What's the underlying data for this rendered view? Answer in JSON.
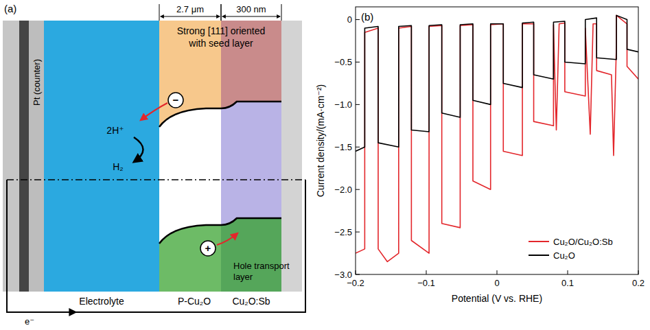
{
  "diagram": {
    "panel_label": "(a)",
    "dimensions": [
      "2.7 μm",
      "300 nm"
    ],
    "annotation": [
      "Strong [111] oriented",
      "with seed layer"
    ],
    "counter_electrode": "Pt (counter)",
    "reaction": {
      "reactant": "2H⁺",
      "product": "H₂"
    },
    "carriers": {
      "electron": "−",
      "hole": "+"
    },
    "hole_layer_label": [
      "Hole transport",
      "layer"
    ],
    "layers": [
      "Electrolyte",
      "P-Cu₂O",
      "Cu₂O:Sb"
    ],
    "current": "e⁻"
  },
  "chart_data": {
    "type": "line",
    "panel_label": "(b)",
    "x_label": "Potential (V vs. RHE)",
    "y_label": "Current density/(mA·cm⁻²)",
    "xlim": [
      -0.2,
      0.2
    ],
    "ylim": [
      -3.0,
      0.15
    ],
    "xticks": [
      {
        "value": -0.2,
        "label": "−0.2"
      },
      {
        "value": -0.1,
        "label": "−0.1"
      },
      0,
      0.1,
      0.2
    ],
    "yticks": [
      {
        "value": -3.0,
        "label": "−3.0"
      },
      {
        "value": -2.5,
        "label": "−2.5"
      },
      {
        "value": -2.0,
        "label": "−2.0"
      },
      {
        "value": -1.5,
        "label": "−1.5"
      },
      {
        "value": -1.0,
        "label": "−1.0"
      },
      {
        "value": -0.5,
        "label": "−0.5"
      },
      0
    ],
    "grid": false,
    "legend": "lower right",
    "series": [
      {
        "name": "Cu₂O/Cu₂O:Sb",
        "color": "#e3262b",
        "x": [
          -0.2,
          -0.187,
          -0.187,
          -0.168,
          -0.168,
          -0.155,
          -0.139,
          -0.139,
          -0.121,
          -0.121,
          -0.096,
          -0.096,
          -0.078,
          -0.078,
          -0.052,
          -0.052,
          -0.034,
          -0.034,
          -0.009,
          -0.009,
          0.009,
          0.009,
          0.036,
          0.036,
          0.052,
          0.052,
          0.08,
          0.08,
          0.084,
          0.088,
          0.096,
          0.096,
          0.125,
          0.125,
          0.132,
          0.136,
          0.141,
          0.141,
          0.162,
          0.165,
          0.169,
          0.169,
          0.184,
          0.184,
          0.2
        ],
        "values": [
          -2.75,
          -2.7,
          -0.15,
          -0.1,
          -2.7,
          -2.85,
          -2.75,
          -0.1,
          -0.08,
          -2.6,
          -2.75,
          -0.08,
          -0.07,
          -2.4,
          -2.45,
          -0.07,
          -0.06,
          -1.9,
          -2.0,
          -0.06,
          -0.05,
          -1.55,
          -1.6,
          -0.05,
          -0.05,
          -1.2,
          -1.25,
          -0.06,
          -1.3,
          -0.05,
          -0.04,
          -0.85,
          -0.9,
          -0.1,
          -1.35,
          -0.05,
          -0.05,
          -0.6,
          -0.65,
          -1.6,
          -0.3,
          0.05,
          -0.05,
          -0.55,
          -0.7
        ]
      },
      {
        "name": "Cu₂O",
        "color": "#000000",
        "x": [
          -0.2,
          -0.187,
          -0.187,
          -0.168,
          -0.168,
          -0.139,
          -0.139,
          -0.121,
          -0.121,
          -0.096,
          -0.096,
          -0.078,
          -0.078,
          -0.052,
          -0.052,
          -0.034,
          -0.034,
          -0.009,
          -0.009,
          0.009,
          0.009,
          0.036,
          0.036,
          0.052,
          0.052,
          0.08,
          0.08,
          0.096,
          0.096,
          0.125,
          0.125,
          0.141,
          0.141,
          0.169,
          0.169,
          0.184,
          0.184,
          0.2
        ],
        "values": [
          -1.55,
          -1.5,
          -0.1,
          -0.08,
          -1.45,
          -1.5,
          -0.08,
          -0.07,
          -1.3,
          -1.32,
          -0.07,
          -0.06,
          -1.1,
          -1.15,
          -0.06,
          -0.05,
          -0.95,
          -1.0,
          -0.05,
          -0.05,
          -0.75,
          -0.8,
          -0.04,
          -0.03,
          -0.65,
          -0.7,
          -0.03,
          -0.02,
          -0.5,
          -0.52,
          0.0,
          0.02,
          -0.45,
          -0.47,
          0.05,
          0.0,
          -0.35,
          -0.38
        ]
      }
    ]
  }
}
